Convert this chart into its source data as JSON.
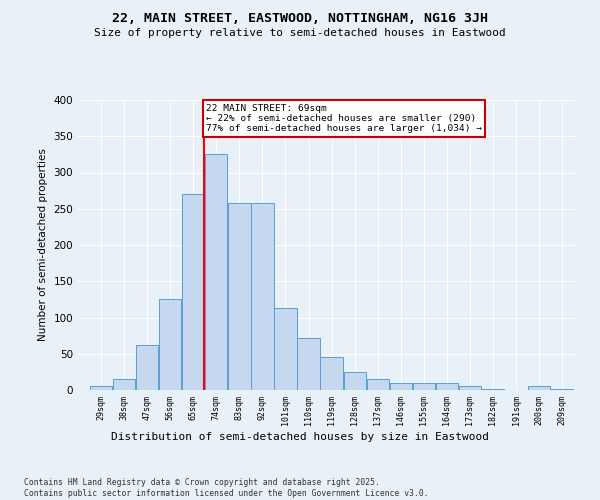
{
  "title1": "22, MAIN STREET, EASTWOOD, NOTTINGHAM, NG16 3JH",
  "title2": "Size of property relative to semi-detached houses in Eastwood",
  "xlabel": "Distribution of semi-detached houses by size in Eastwood",
  "ylabel": "Number of semi-detached properties",
  "bins": [
    29,
    38,
    47,
    56,
    65,
    74,
    83,
    92,
    101,
    110,
    119,
    128,
    137,
    146,
    155,
    164,
    173,
    182,
    191,
    200,
    209
  ],
  "values": [
    5,
    15,
    62,
    125,
    270,
    325,
    258,
    258,
    113,
    72,
    45,
    25,
    15,
    10,
    9,
    9,
    6,
    2,
    0,
    5,
    2
  ],
  "bar_color": "#c5d8f0",
  "bar_edge_color": "#5a9fd4",
  "red_line_x": 69,
  "annotation_text": "22 MAIN STREET: 69sqm\n← 22% of semi-detached houses are smaller (290)\n77% of semi-detached houses are larger (1,034) →",
  "annotation_box_color": "#ffffff",
  "annotation_box_edge": "#cc0000",
  "bg_color": "#e8f0f8",
  "grid_color": "#ffffff",
  "footer": "Contains HM Land Registry data © Crown copyright and database right 2025.\nContains public sector information licensed under the Open Government Licence v3.0.",
  "ylim": [
    0,
    400
  ],
  "yticks": [
    0,
    50,
    100,
    150,
    200,
    250,
    300,
    350,
    400
  ]
}
